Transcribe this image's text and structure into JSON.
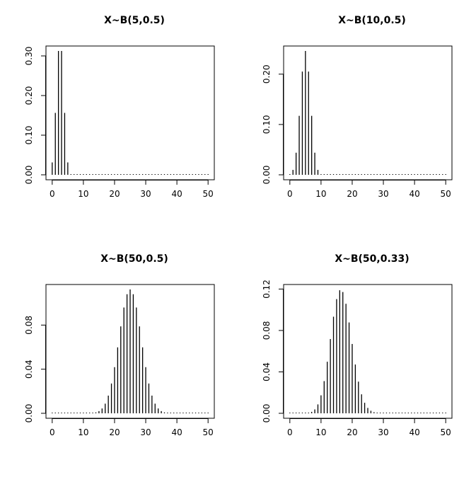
{
  "chart_data": [
    {
      "type": "bar",
      "style": "histogram-lines",
      "title": "X~B(5,0.5)",
      "n": 5,
      "p": 0.5,
      "x": [
        0,
        50
      ],
      "xlim": [
        0,
        50
      ],
      "ylim": [
        0,
        0.3125
      ],
      "xticks": [
        0,
        10,
        20,
        30,
        40,
        50
      ],
      "yticks": [
        "0.00",
        "0.10",
        "0.20",
        "0.30"
      ],
      "values_nonzero": {
        "0": 0.03125,
        "1": 0.15625,
        "2": 0.3125,
        "3": 0.3125,
        "4": 0.15625,
        "5": 0.03125
      }
    },
    {
      "type": "bar",
      "style": "histogram-lines",
      "title": "X~B(10,0.5)",
      "n": 10,
      "p": 0.5,
      "x": [
        0,
        50
      ],
      "xlim": [
        0,
        50
      ],
      "ylim": [
        0,
        0.2461
      ],
      "xticks": [
        0,
        10,
        20,
        30,
        40,
        50
      ],
      "yticks": [
        "0.00",
        "0.10",
        "0.20"
      ],
      "values_nonzero": {
        "0": 0.00098,
        "1": 0.00977,
        "2": 0.04395,
        "3": 0.11719,
        "4": 0.20508,
        "5": 0.24609,
        "6": 0.20508,
        "7": 0.11719,
        "8": 0.04395,
        "9": 0.00977,
        "10": 0.00098
      }
    },
    {
      "type": "bar",
      "style": "histogram-lines",
      "title": "X~B(50,0.5)",
      "n": 50,
      "p": 0.5,
      "x": [
        0,
        50
      ],
      "xlim": [
        0,
        50
      ],
      "ylim": [
        0,
        0.1123
      ],
      "xticks": [
        0,
        10,
        20,
        30,
        40,
        50
      ],
      "yticks": [
        "0.00",
        "0.04",
        "0.08"
      ]
    },
    {
      "type": "bar",
      "style": "histogram-lines",
      "title": "X~B(50,0.33)",
      "n": 50,
      "p": 0.33,
      "x": [
        0,
        50
      ],
      "xlim": [
        0,
        50
      ],
      "ylim": [
        0,
        0.1196
      ],
      "xticks": [
        0,
        10,
        20,
        30,
        40,
        50
      ],
      "yticks": [
        "0.00",
        "0.04",
        "0.08",
        "0.12"
      ]
    }
  ]
}
